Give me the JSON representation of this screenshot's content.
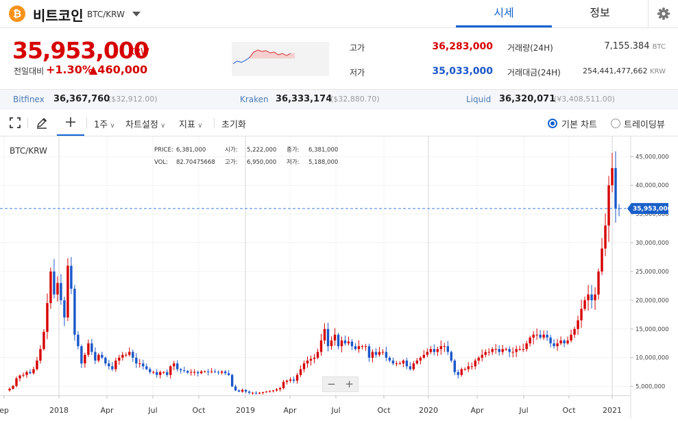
{
  "header": {
    "coin_icon": "bitcoin-icon",
    "coin_symbol_glyph": "₿",
    "coin_name": "비트코인",
    "pair": "BTC/KRW",
    "tabs": [
      "시세",
      "정보"
    ]
  },
  "ticker": {
    "price": "35,953,000",
    "price_unit": "KRW",
    "change_label": "전일대비",
    "change_rate": "+1.30%",
    "change_amount": "▲460,000",
    "high_label": "고가",
    "high": "36,283,000",
    "low_label": "저가",
    "low": "35,033,000",
    "volume_label": "거래량(24H)",
    "volume": "7,155.384",
    "volume_unit": "BTC",
    "turnover_label": "거래대금(24H)",
    "turnover": "254,441,477,662",
    "turnover_unit": "KRW"
  },
  "exchanges": [
    {
      "name": "Bitfinex",
      "value": "36,367,760",
      "sub": "($32,912.00)"
    },
    {
      "name": "Kraken",
      "value": "36,333,174",
      "sub": "($32,880.70)"
    },
    {
      "name": "Liquid",
      "value": "36,320,071",
      "sub": "(¥3,408,511.00)"
    }
  ],
  "toolbar": {
    "interval": "1주",
    "chart_settings": "차트설정",
    "indicators": "지표",
    "reset": "초기화",
    "basic_chart": "기본 차트",
    "tradingview": "트레이딩뷰"
  },
  "colors": {
    "up": "#d60000",
    "down": "#1a56c8",
    "accent": "#1061d1",
    "bitcoin": "#f7931a"
  },
  "chart_data": {
    "type": "candlestick",
    "title": "BTC/KRW",
    "info": {
      "price_label": "PRICE:",
      "price": "6,381,000",
      "open_label": "시가:",
      "open": "5,222,000",
      "close_label": "종가:",
      "close": "6,381,000",
      "vol_label": "VOL:",
      "vol": "82.70475668",
      "high_label": "고가:",
      "high": "6,950,000",
      "low_label": "저가:",
      "low": "5,188,000"
    },
    "x_tick_labels": [
      "ep",
      "2018",
      "Apr",
      "Jul",
      "Oct",
      "2019",
      "Apr",
      "Jul",
      "Oct",
      "2020",
      "Apr",
      "Jul",
      "Oct",
      "2021"
    ],
    "y_tick_values": [
      5000000,
      10000000,
      15000000,
      20000000,
      25000000,
      30000000,
      35000000,
      40000000,
      45000000
    ],
    "y_tick_labels": [
      "5,000,000",
      "10,000,000",
      "15,000,000",
      "20,000,000",
      "25,000,000",
      "30,000,000",
      "35,000,000",
      "40,000,000",
      "45,000,000"
    ],
    "ylim": [
      3400000,
      48500000
    ],
    "current_price": 35953000,
    "current_price_label": "35,953,000",
    "closes": [
      4600000,
      5100000,
      6400000,
      6900000,
      7000000,
      7500000,
      7300000,
      8000000,
      9500000,
      11500000,
      14500000,
      19500000,
      25000000,
      21000000,
      23000000,
      20000000,
      17000000,
      26000000,
      22000000,
      14000000,
      12000000,
      9000000,
      10500000,
      12500000,
      11000000,
      9500000,
      10500000,
      10000000,
      9000000,
      8500000,
      8000000,
      9500000,
      10000000,
      10500000,
      10500000,
      11000000,
      10000000,
      9000000,
      9000000,
      8500000,
      8000000,
      7500000,
      7500000,
      7000000,
      7500000,
      7500000,
      7000000,
      8500000,
      9000000,
      8000000,
      7800000,
      7700000,
      7400000,
      7500000,
      7500000,
      7300000,
      7600000,
      7600000,
      7500000,
      7600000,
      7500000,
      7400000,
      7600000,
      7300000,
      7000000,
      5000000,
      4300000,
      4100000,
      4400000,
      4100000,
      3900000,
      3900000,
      3800000,
      3900000,
      4000000,
      4100000,
      4200000,
      4300000,
      4500000,
      4700000,
      5800000,
      6000000,
      6200000,
      6000000,
      7000000,
      8000000,
      9000000,
      9500000,
      9800000,
      10000000,
      11000000,
      13000000,
      15000000,
      12000000,
      13000000,
      14000000,
      12000000,
      13000000,
      12500000,
      12800000,
      12000000,
      11500000,
      12000000,
      12000000,
      12000000,
      10000000,
      11000000,
      10500000,
      11000000,
      11000000,
      10000000,
      9500000,
      9000000,
      9000000,
      9000000,
      9500000,
      8500000,
      8000000,
      9000000,
      9500000,
      10000000,
      10500000,
      11000000,
      11500000,
      11000000,
      11500000,
      12000000,
      12000000,
      11000000,
      9500000,
      7500000,
      7000000,
      8000000,
      8000000,
      8500000,
      8500000,
      9500000,
      10000000,
      10500000,
      11000000,
      11000000,
      11500000,
      11500000,
      11000000,
      11500000,
      11500000,
      11000000,
      11000000,
      11500000,
      11500000,
      11500000,
      12500000,
      13500000,
      14000000,
      14000000,
      13500000,
      14000000,
      13500000,
      12500000,
      12000000,
      12500000,
      13000000,
      12500000,
      13000000,
      14000000,
      15000000,
      16500000,
      18500000,
      20000000,
      21000000,
      20000000,
      21000000,
      25000000,
      29000000,
      33000000,
      40000000,
      43000000,
      36000000,
      35953000
    ]
  }
}
